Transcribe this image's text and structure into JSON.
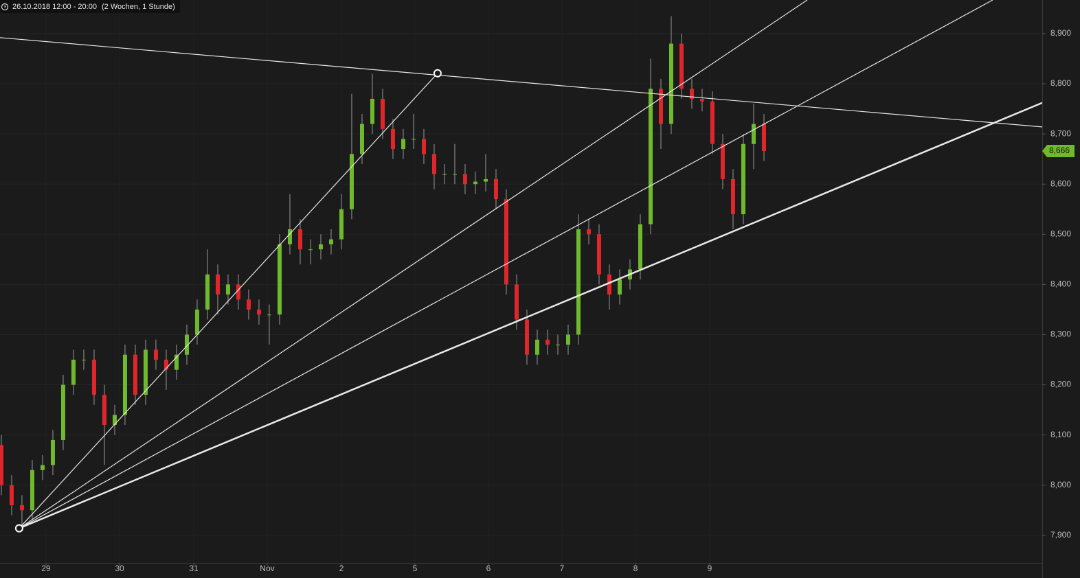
{
  "chart_data": {
    "type": "candlestick",
    "title": "26.10.2018 12:00 - 20:00",
    "subtitle": "(2 Wochen, 1 Stunde)",
    "up_color": "#6fba2c",
    "down_color": "#e0262b",
    "grid": true,
    "open": [
      8080,
      8000,
      7960,
      7950,
      8030,
      8040,
      8090,
      8200,
      8250,
      8250,
      8180,
      8120,
      8140,
      8260,
      8180,
      8270,
      8250,
      8230,
      8260,
      8300,
      8350,
      8420,
      8380,
      8400,
      8370,
      8350,
      8340,
      8340,
      8480,
      8510,
      8470,
      8470,
      8480,
      8490,
      8550,
      8660,
      8720,
      8770,
      8710,
      8670,
      8690,
      8690,
      8660,
      8620,
      8620,
      8620,
      8600,
      8605,
      8610,
      8570,
      8400,
      8330,
      8260,
      8290,
      8280,
      8280,
      8300,
      8510,
      8500,
      8420,
      8380,
      8410,
      8430,
      8520,
      8790,
      8720,
      8880,
      8790,
      8770,
      8765,
      8680,
      8610,
      8540,
      8680,
      8720
    ],
    "high": [
      8100,
      8020,
      7980,
      8050,
      8060,
      8110,
      8220,
      8270,
      8270,
      8270,
      8200,
      8160,
      8280,
      8280,
      8290,
      8290,
      8270,
      8280,
      8320,
      8370,
      8470,
      8440,
      8420,
      8420,
      8390,
      8370,
      8360,
      8500,
      8580,
      8530,
      8490,
      8500,
      8510,
      8580,
      8780,
      8740,
      8820,
      8790,
      8730,
      8710,
      8740,
      8710,
      8680,
      8640,
      8680,
      8640,
      8625,
      8660,
      8630,
      8590,
      8420,
      8350,
      8310,
      8310,
      8300,
      8320,
      8540,
      8530,
      8520,
      8440,
      8430,
      8450,
      8540,
      8850,
      8810,
      8935,
      8900,
      8810,
      8790,
      8785,
      8700,
      8630,
      8700,
      8760,
      8740
    ],
    "low": [
      7980,
      7940,
      7914,
      7930,
      8010,
      8020,
      8070,
      8180,
      8230,
      8160,
      8040,
      8100,
      8120,
      8160,
      8160,
      8230,
      8190,
      8210,
      8240,
      8280,
      8330,
      8340,
      8360,
      8350,
      8330,
      8320,
      8280,
      8320,
      8460,
      8440,
      8440,
      8450,
      8460,
      8470,
      8530,
      8640,
      8700,
      8690,
      8650,
      8650,
      8670,
      8640,
      8590,
      8600,
      8600,
      8580,
      8580,
      8585,
      8550,
      8380,
      8310,
      8240,
      8240,
      8260,
      8260,
      8260,
      8280,
      8480,
      8400,
      8350,
      8360,
      8390,
      8410,
      8500,
      8670,
      8700,
      8770,
      8750,
      8745,
      8660,
      8590,
      8510,
      8520,
      8630,
      8646
    ],
    "close": [
      8000,
      7960,
      7950,
      8030,
      8040,
      8090,
      8200,
      8250,
      8250,
      8180,
      8120,
      8140,
      8260,
      8180,
      8270,
      8250,
      8230,
      8260,
      8300,
      8350,
      8420,
      8380,
      8400,
      8370,
      8350,
      8340,
      8340,
      8480,
      8510,
      8470,
      8470,
      8480,
      8490,
      8550,
      8660,
      8720,
      8770,
      8710,
      8670,
      8690,
      8690,
      8660,
      8620,
      8620,
      8620,
      8600,
      8605,
      8610,
      8570,
      8400,
      8330,
      8260,
      8290,
      8280,
      8280,
      8300,
      8510,
      8500,
      8420,
      8380,
      8410,
      8430,
      8520,
      8790,
      8720,
      8880,
      8790,
      8770,
      8765,
      8680,
      8610,
      8540,
      8680,
      8720,
      8666
    ],
    "xlim": [
      -0.13,
      101
    ],
    "xticks": [
      {
        "value": 4.33,
        "label": "29"
      },
      {
        "value": 11.47,
        "label": "30"
      },
      {
        "value": 18.67,
        "label": "31"
      },
      {
        "value": 25.8,
        "label": "Nov"
      },
      {
        "value": 33,
        "label": "2"
      },
      {
        "value": 40.13,
        "label": "5"
      },
      {
        "value": 47.27,
        "label": "6"
      },
      {
        "value": 54.4,
        "label": "7"
      },
      {
        "value": 61.53,
        "label": "8"
      },
      {
        "value": 68.73,
        "label": "9"
      }
    ],
    "ylim": [
      7845,
      8967
    ],
    "yticks": [
      {
        "value": 7900,
        "label": "7,900"
      },
      {
        "value": 8000,
        "label": "8,000"
      },
      {
        "value": 8100,
        "label": "8,100"
      },
      {
        "value": 8200,
        "label": "8,200"
      },
      {
        "value": 8300,
        "label": "8,300"
      },
      {
        "value": 8400,
        "label": "8,400"
      },
      {
        "value": 8500,
        "label": "8,500"
      },
      {
        "value": 8600,
        "label": "8,600"
      },
      {
        "value": 8700,
        "label": "8,700"
      },
      {
        "value": 8800,
        "label": "8,800"
      },
      {
        "value": 8900,
        "label": "8,900"
      }
    ],
    "last_price": {
      "value": 8666,
      "label": "8,666"
    },
    "lines": [
      [
        [
          -0.13,
          8892
        ],
        [
          101,
          8714
        ]
      ],
      [
        [
          1.73,
          7914
        ],
        [
          42.33,
          8821
        ]
      ],
      [
        [
          1.73,
          7914
        ],
        [
          78.2,
          8967
        ]
      ],
      [
        [
          1.73,
          7914
        ],
        [
          96.2,
          8967
        ]
      ],
      [
        [
          1.73,
          7914
        ],
        [
          101,
          8762
        ]
      ]
    ],
    "anchors": [
      [
        1.73,
        7914
      ],
      [
        42.33,
        8821
      ]
    ]
  }
}
